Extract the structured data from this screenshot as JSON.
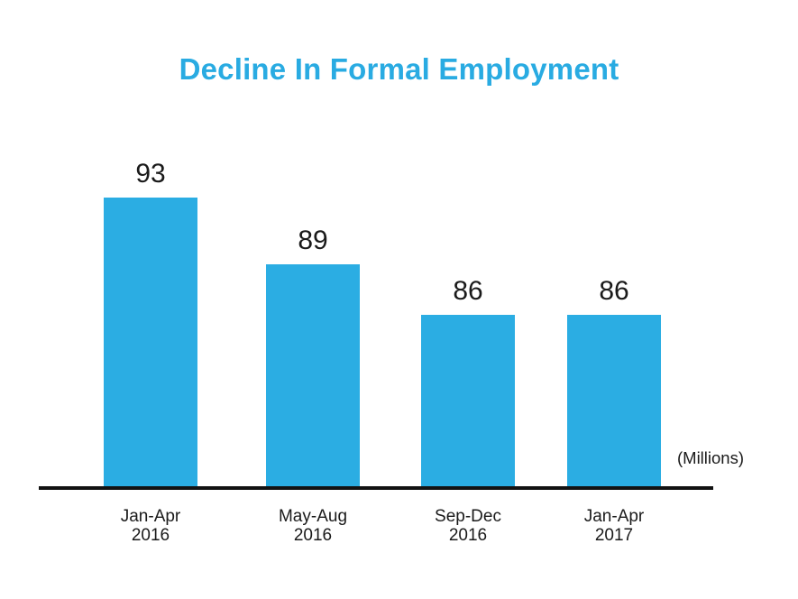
{
  "title": {
    "text": "Decline In Formal Employment",
    "color": "#29ABE2"
  },
  "unit_label": "(Millions)",
  "colors": {
    "bar": "#2BADE3",
    "axis": "#121212",
    "text": "#1a1a1a"
  },
  "chart_data": {
    "type": "bar",
    "title": "Decline In Formal Employment",
    "categories": [
      "Jan-Apr 2016",
      "May-Aug 2016",
      "Sep-Dec 2016",
      "Jan-Apr 2017"
    ],
    "category_lines": [
      [
        "Jan-Apr",
        "2016"
      ],
      [
        "May-Aug",
        "2016"
      ],
      [
        "Sep-Dec",
        "2016"
      ],
      [
        "Jan-Apr",
        "2017"
      ]
    ],
    "values": [
      93,
      89,
      86,
      86
    ],
    "value_labels": [
      "93",
      "89",
      "86",
      "86"
    ],
    "xlabel": "",
    "ylabel": "(Millions)",
    "unit": "Millions",
    "legend": "none",
    "grid": false,
    "y_axis_shown": false,
    "baseline": "x-axis only",
    "bar_color": "#2BADE3",
    "title_color": "#29ABE2"
  }
}
